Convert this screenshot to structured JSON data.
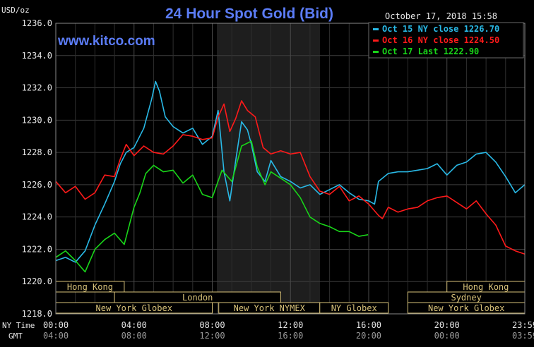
{
  "chart_data": {
    "type": "line",
    "title": "24 Hour Spot Gold (Bid)",
    "website": "www.kitco.com",
    "timestamp": "October 17, 2018 15:58",
    "ylabel": "USD/oz",
    "ylim": [
      1218,
      1236
    ],
    "y_ticks": [
      "1236.0",
      "1234.0",
      "1232.0",
      "1230.0",
      "1228.0",
      "1226.0",
      "1224.0",
      "1222.0",
      "1220.0",
      "1218.0"
    ],
    "x_row_labels": {
      "ny": "NY Time",
      "gmt": "GMT"
    },
    "x_ticks_ny": [
      "00:00",
      "04:00",
      "08:00",
      "12:00",
      "16:00",
      "20:00",
      "23:59"
    ],
    "x_ticks_gmt": [
      "04:00",
      "08:00",
      "12:00",
      "16:00",
      "20:00",
      "00:00",
      "03:59"
    ],
    "grid": true,
    "legend_position": "top-right",
    "colors": {
      "cyan": "#29b9e6",
      "red": "#ff1a1a",
      "green": "#19d619",
      "title": "#5b7cf6",
      "session": "#d8c27a"
    },
    "sessions": [
      {
        "label": "Hong Kong",
        "row": 0,
        "start": "00:00",
        "end": "03:30"
      },
      {
        "label": "London",
        "row": 1,
        "start": "03:00",
        "end": "11:30"
      },
      {
        "label": "New York Globex",
        "row": 2,
        "start": "00:00",
        "end": "08:00"
      },
      {
        "label": "New York NYMEX",
        "row": 2,
        "start": "08:20",
        "end": "13:30"
      },
      {
        "label": "NY Globex",
        "row": 2,
        "start": "13:30",
        "end": "17:00"
      },
      {
        "label": "Hong Kong",
        "row": 0,
        "start": "20:00",
        "end": "23:59"
      },
      {
        "label": "Sydney",
        "row": 1,
        "start": "18:00",
        "end": "23:59"
      },
      {
        "label": "New York Globex",
        "row": 2,
        "start": "18:00",
        "end": "23:59"
      }
    ],
    "series": [
      {
        "name": "Oct 15 NY close 1226.70",
        "color": "#29b9e6",
        "x": [
          0.0,
          0.5,
          1.0,
          1.5,
          2.0,
          2.5,
          3.0,
          3.3,
          3.6,
          4.0,
          4.5,
          4.9,
          5.1,
          5.3,
          5.6,
          6.0,
          6.5,
          7.0,
          7.5,
          8.0,
          8.3,
          8.6,
          8.9,
          9.2,
          9.5,
          9.8,
          10.0,
          10.3,
          10.7,
          11.0,
          11.5,
          12.0,
          12.5,
          13.0,
          13.5,
          14.0,
          14.5,
          15.0,
          15.5,
          16.0,
          16.3,
          16.5,
          17.0,
          17.5,
          18.0,
          18.5,
          19.0,
          19.5,
          20.0,
          20.5,
          21.0,
          21.5,
          22.0,
          22.5,
          23.0,
          23.5,
          23.98
        ],
        "values": [
          1221.3,
          1221.5,
          1221.2,
          1221.9,
          1223.5,
          1224.8,
          1226.2,
          1227.3,
          1228.0,
          1228.3,
          1229.5,
          1231.3,
          1232.4,
          1231.8,
          1230.2,
          1229.6,
          1229.2,
          1229.5,
          1228.5,
          1229.0,
          1230.6,
          1226.8,
          1225.0,
          1227.5,
          1229.9,
          1229.4,
          1228.5,
          1226.8,
          1226.2,
          1227.5,
          1226.5,
          1226.2,
          1225.8,
          1226.0,
          1225.4,
          1225.7,
          1226.0,
          1225.5,
          1225.1,
          1225.0,
          1224.8,
          1226.2,
          1226.7,
          1226.8,
          1226.8,
          1226.9,
          1227.0,
          1227.3,
          1226.6,
          1227.2,
          1227.4,
          1227.9,
          1228.0,
          1227.4,
          1226.5,
          1225.5,
          1226.0
        ]
      },
      {
        "name": "Oct 16 NY close 1224.50",
        "color": "#ff1a1a",
        "x": [
          0.0,
          0.5,
          1.0,
          1.5,
          2.0,
          2.5,
          3.0,
          3.3,
          3.6,
          4.0,
          4.5,
          5.0,
          5.5,
          6.0,
          6.5,
          7.0,
          7.5,
          8.0,
          8.3,
          8.6,
          8.9,
          9.2,
          9.5,
          9.8,
          10.2,
          10.6,
          11.0,
          11.5,
          12.0,
          12.5,
          13.0,
          13.5,
          14.0,
          14.5,
          15.0,
          15.5,
          16.0,
          16.5,
          16.7,
          17.0,
          17.5,
          18.0,
          18.5,
          19.0,
          19.5,
          20.0,
          20.5,
          21.0,
          21.5,
          22.0,
          22.5,
          23.0,
          23.5,
          23.98
        ],
        "values": [
          1226.2,
          1225.5,
          1225.9,
          1225.1,
          1225.5,
          1226.6,
          1226.5,
          1227.6,
          1228.5,
          1227.8,
          1228.4,
          1228.0,
          1227.9,
          1228.4,
          1229.1,
          1229.0,
          1228.8,
          1228.9,
          1230.2,
          1231.0,
          1229.3,
          1230.1,
          1231.2,
          1230.6,
          1230.2,
          1228.3,
          1227.9,
          1228.1,
          1227.9,
          1228.0,
          1226.5,
          1225.6,
          1225.4,
          1225.9,
          1225.0,
          1225.3,
          1224.8,
          1224.1,
          1223.9,
          1224.6,
          1224.3,
          1224.5,
          1224.6,
          1225.0,
          1225.2,
          1225.3,
          1224.9,
          1224.5,
          1225.0,
          1224.2,
          1223.5,
          1222.2,
          1221.9,
          1221.7
        ]
      },
      {
        "name": "Oct 17 Last 1222.90",
        "color": "#19d619",
        "x": [
          0.0,
          0.5,
          1.0,
          1.5,
          2.0,
          2.5,
          3.0,
          3.5,
          4.0,
          4.3,
          4.6,
          5.0,
          5.5,
          6.0,
          6.5,
          7.0,
          7.5,
          8.0,
          8.5,
          9.0,
          9.5,
          10.0,
          10.3,
          10.7,
          11.0,
          11.5,
          12.0,
          12.5,
          13.0,
          13.5,
          14.0,
          14.5,
          15.0,
          15.5,
          15.97
        ],
        "values": [
          1221.5,
          1221.9,
          1221.3,
          1220.6,
          1222.0,
          1222.6,
          1223.0,
          1222.3,
          1224.6,
          1225.5,
          1226.7,
          1227.2,
          1226.8,
          1226.9,
          1226.1,
          1226.6,
          1225.4,
          1225.2,
          1226.9,
          1226.2,
          1228.4,
          1228.7,
          1227.1,
          1226.0,
          1226.8,
          1226.4,
          1226.0,
          1225.2,
          1224.0,
          1223.6,
          1223.4,
          1223.1,
          1223.1,
          1222.8,
          1222.9
        ]
      }
    ]
  }
}
